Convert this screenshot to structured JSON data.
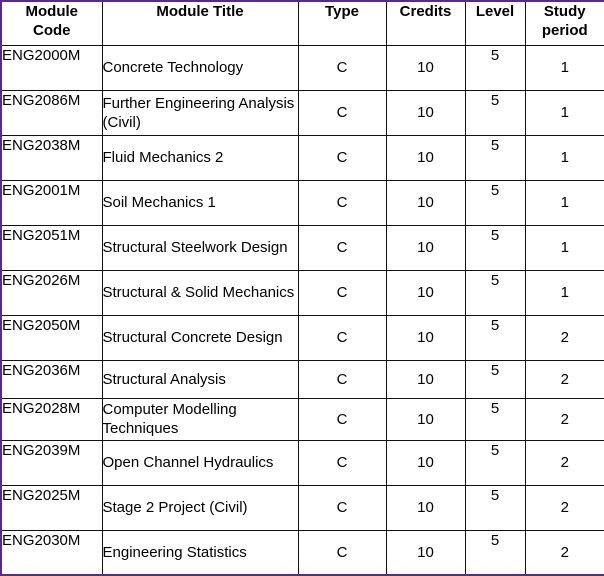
{
  "table": {
    "headers": [
      "Module Code",
      "Module Title",
      "Type",
      "Credits",
      "Level",
      "Study period"
    ],
    "rows": [
      {
        "code": "ENG2000M",
        "title": "Concrete Technology",
        "type": "C",
        "credits": "10",
        "level": "5",
        "period": "1"
      },
      {
        "code": "ENG2086M",
        "title": "Further Engineering Analysis (Civil)",
        "type": "C",
        "credits": "10",
        "level": "5",
        "period": "1"
      },
      {
        "code": "ENG2038M",
        "title": "Fluid Mechanics 2",
        "type": "C",
        "credits": "10",
        "level": "5",
        "period": "1"
      },
      {
        "code": "ENG2001M",
        "title": "Soil Mechanics 1",
        "type": "C",
        "credits": "10",
        "level": "5",
        "period": "1"
      },
      {
        "code": "ENG2051M",
        "title": "Structural Steelwork Design",
        "type": "C",
        "credits": "10",
        "level": "5",
        "period": "1"
      },
      {
        "code": "ENG2026M",
        "title": "Structural & Solid Mechanics",
        "type": "C",
        "credits": "10",
        "level": "5",
        "period": "1"
      },
      {
        "code": "ENG2050M",
        "title": "Structural Concrete Design",
        "type": "C",
        "credits": "10",
        "level": "5",
        "period": "2"
      },
      {
        "code": "ENG2036M",
        "title": "Structural Analysis",
        "type": "C",
        "credits": "10",
        "level": "5",
        "period": "2"
      },
      {
        "code": "ENG2028M",
        "title": "Computer Modelling Techniques",
        "type": "C",
        "credits": "10",
        "level": "5",
        "period": "2"
      },
      {
        "code": "ENG2039M",
        "title": "Open Channel Hydraulics",
        "type": "C",
        "credits": "10",
        "level": "5",
        "period": "2"
      },
      {
        "code": "ENG2025M",
        "title": "Stage 2 Project (Civil)",
        "type": "C",
        "credits": "10",
        "level": "5",
        "period": "2"
      },
      {
        "code": "ENG2030M",
        "title": "Engineering Statistics",
        "type": "C",
        "credits": "10",
        "level": "5",
        "period": "2"
      }
    ]
  },
  "colors": {
    "outer_border": "#5b2a86",
    "grid": "#111111"
  }
}
